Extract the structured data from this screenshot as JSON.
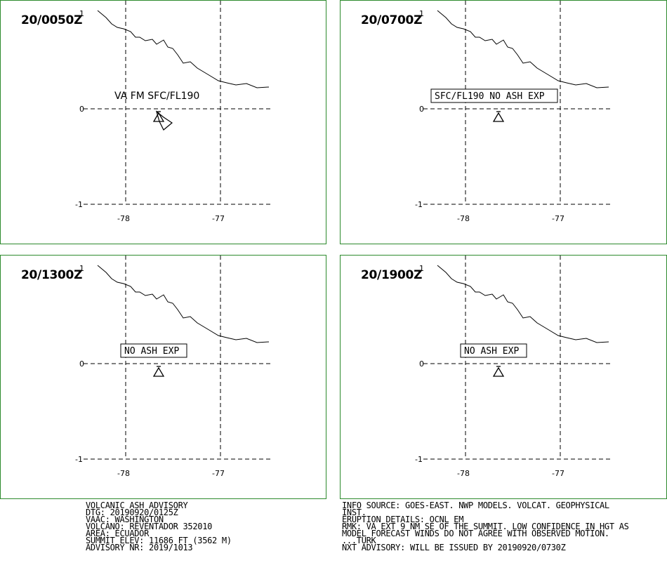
{
  "panels": [
    {
      "time": "20/0050Z",
      "note": "VA FM SFC/FL190",
      "boxed": false,
      "ash_polygon": true
    },
    {
      "time": "20/0700Z",
      "note": "SFC/FL190 NO ASH EXP",
      "boxed": true,
      "ash_polygon": false
    },
    {
      "time": "20/1300Z",
      "note": "NO ASH EXP",
      "boxed": true,
      "ash_polygon": false
    },
    {
      "time": "20/1900Z",
      "note": "NO ASH EXP",
      "boxed": true,
      "ash_polygon": false
    }
  ],
  "axes": {
    "lat_labels": [
      "1",
      "0",
      "-1"
    ],
    "lon_labels": [
      "-78",
      "-77"
    ]
  },
  "advisory_left": [
    "VOLCANIC ASH ADVISORY",
    "DTG: 20190920/0125Z",
    "VAAC: WASHINGTON",
    "VOLCANO: REVENTADOR 352010",
    "AREA: ECUADOR",
    "SUMMIT ELEV: 11686 FT (3562 M)",
    "ADVISORY NR: 2019/1013"
  ],
  "advisory_right": [
    "INFO SOURCE: GOES-EAST. NWP MODELS. VOLCAT. GEOPHYSICAL",
    "INST.",
    "ERUPTION DETAILS: OCNL EM",
    "RMK: VA EXT 9 NM SE OF THE SUMMIT. LOW CONFIDENCE IN HGT AS",
    "MODEL FORECAST WINDS DO NOT AGREE WITH OBSERVED MOTION.",
    "...TURK",
    "NXT ADVISORY: WILL BE ISSUED BY 20190920/0730Z"
  ],
  "colors": {
    "panel_border": "#2d8a2d"
  }
}
